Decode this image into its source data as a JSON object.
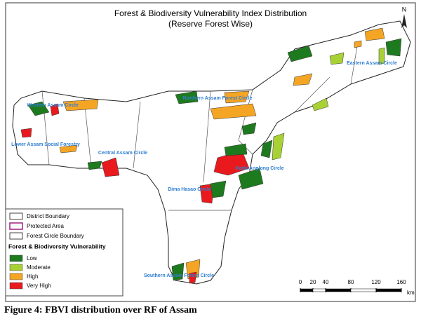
{
  "map": {
    "title": "Forest & Biodiversity Vulnerability Index Distribution",
    "subtitle": "(Reserve Forest Wise)",
    "north": "N",
    "circle_labels": [
      "Western Assam Circle",
      "Lower Assam Social Forestry",
      "Central Assam Circle",
      "Northern Assam Forest Circle",
      "Eastern Assam Circle",
      "Karbi Anglong Circle",
      "Dima Hasao Circle",
      "Southern Assam Forest Circle"
    ],
    "legend": {
      "boundaries": [
        "District Boundary",
        "Protected Area",
        "Forest Circle Boundary"
      ],
      "heading": "Forest & Biodiversity Vulnerability",
      "classes": [
        {
          "name": "Low",
          "color": "#1e7a1e"
        },
        {
          "name": "Moderate",
          "color": "#a8d234"
        },
        {
          "name": "High",
          "color": "#f5a524"
        },
        {
          "name": "Very High",
          "color": "#e81a1e"
        }
      ]
    },
    "scale_bar": {
      "ticks": [
        0,
        20,
        40,
        80,
        120,
        160
      ],
      "unit": "km"
    }
  },
  "caption": "Figure 4: FBVI distribution over RF of Assam"
}
